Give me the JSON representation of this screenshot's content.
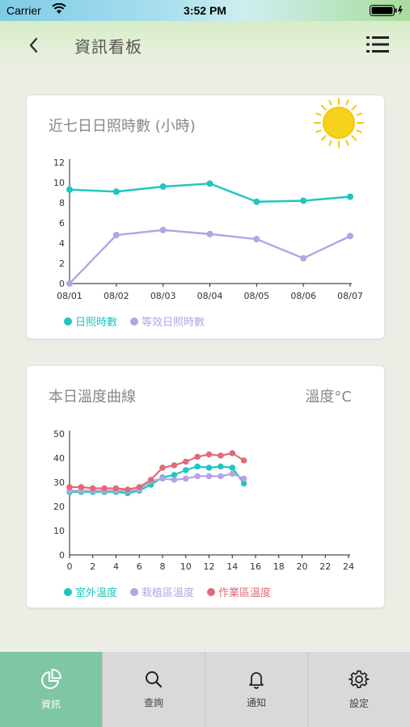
{
  "status_bar": {
    "carrier": "Carrier",
    "time": "3:52 PM"
  },
  "header": {
    "title": "資訊看板",
    "back_icon": "chevron-left-icon",
    "menu_icon": "list-menu-icon"
  },
  "sunshine_card": {
    "title": "近七日日照時數 (小時)",
    "icon": "sun-icon",
    "legend": [
      {
        "label": "日照時數",
        "color": "#1fc6c0"
      },
      {
        "label": "等效日照時數",
        "color": "#b7a3e3"
      }
    ]
  },
  "temperature_card": {
    "title": "本日溫度曲線",
    "unit": "溫度°C",
    "legend": [
      {
        "label": "室外溫度",
        "color": "#1fc6c0"
      },
      {
        "label": "栽植區溫度",
        "color": "#b7a3e3"
      },
      {
        "label": "作業區溫度",
        "color": "#e06a78"
      }
    ]
  },
  "tabs": [
    {
      "label": "資訊",
      "icon": "pie-chart-icon",
      "active": true
    },
    {
      "label": "查詢",
      "icon": "search-icon",
      "active": false
    },
    {
      "label": "通知",
      "icon": "bell-icon",
      "active": false
    },
    {
      "label": "設定",
      "icon": "gear-icon",
      "active": false
    }
  ],
  "chart_data": [
    {
      "type": "line",
      "title": "近七日日照時數 (小時)",
      "categories": [
        "08/01",
        "08/02",
        "08/03",
        "08/04",
        "08/05",
        "08/06",
        "08/07"
      ],
      "ylim": [
        0,
        12
      ],
      "yticks": [
        0,
        2,
        4,
        6,
        8,
        10,
        12
      ],
      "series": [
        {
          "name": "日照時數",
          "color": "#1fc6c0",
          "values": [
            9.3,
            9.1,
            9.6,
            9.9,
            8.1,
            8.2,
            8.6
          ]
        },
        {
          "name": "等效日照時數",
          "color": "#b7a3e3",
          "values": [
            0,
            4.8,
            5.3,
            4.9,
            4.4,
            2.5,
            4.7
          ]
        }
      ],
      "legend": "bottom-left",
      "grid": false
    },
    {
      "type": "line",
      "title": "本日溫度曲線",
      "ylabel": "溫度°C",
      "xlim": [
        0,
        24
      ],
      "xticks": [
        0,
        2,
        4,
        6,
        8,
        10,
        12,
        14,
        16,
        18,
        20,
        22,
        24
      ],
      "ylim": [
        0,
        50
      ],
      "yticks": [
        0,
        10,
        20,
        30,
        40,
        50
      ],
      "x": [
        0,
        1,
        2,
        3,
        4,
        5,
        6,
        7,
        8,
        9,
        10,
        11,
        12,
        13,
        14,
        15
      ],
      "series": [
        {
          "name": "室外溫度",
          "color": "#1fc6c0",
          "values": [
            26,
            26,
            26,
            26,
            26,
            25.5,
            26.5,
            29,
            32,
            33,
            35,
            36.5,
            36,
            36.5,
            36,
            29.5
          ]
        },
        {
          "name": "栽植區溫度",
          "color": "#b7a3e3",
          "values": [
            26.5,
            26.5,
            26.5,
            26.5,
            26.5,
            26.5,
            27,
            30.5,
            31.5,
            31,
            31.5,
            32.5,
            32.5,
            32.5,
            33.5,
            31.5
          ]
        },
        {
          "name": "作業區溫度",
          "color": "#e06a78",
          "values": [
            28,
            28,
            27.5,
            27.5,
            27.5,
            27,
            28,
            31,
            36,
            37,
            38.5,
            40.5,
            41.5,
            41,
            42,
            39
          ]
        }
      ],
      "legend": "bottom-left",
      "grid": false
    }
  ]
}
